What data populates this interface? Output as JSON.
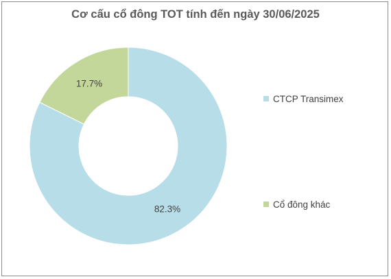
{
  "chart_data": {
    "type": "pie",
    "variant": "donut",
    "title": "Cơ cấu cổ đông TOT tính đến ngày 30/06/2025",
    "categories": [
      "CTCP Transimex",
      "Cổ đông khác"
    ],
    "values": [
      82.3,
      17.7
    ],
    "data_labels": [
      "82.3%",
      "17.7%"
    ],
    "colors": [
      "#b7dde8",
      "#c4d79b"
    ],
    "legend_placement": "right"
  }
}
